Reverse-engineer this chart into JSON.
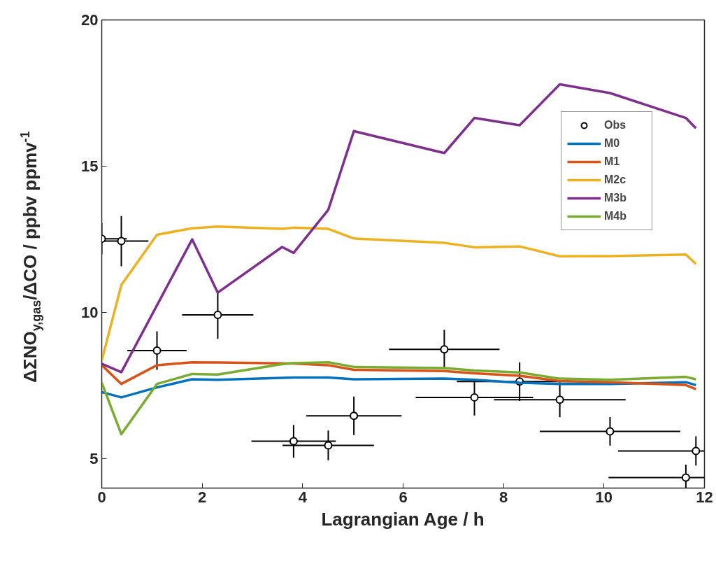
{
  "chart_data": {
    "type": "line",
    "xlabel": "Lagrangian Age / h",
    "ylabel": "ΔΣNO$_{y,gas}$/ΔCO / ppbv ppmv$^{-1}$",
    "xlim": [
      0,
      12
    ],
    "xticks": [
      0,
      2,
      4,
      6,
      8,
      10,
      12
    ],
    "ylim": [
      4,
      20
    ],
    "yticks": [
      5,
      10,
      15,
      20
    ],
    "grid": false,
    "legend": "top right",
    "line_style": "solid",
    "series": [
      {
        "name": "Obs",
        "type": "scatter",
        "marker": "circle",
        "color": "#000000",
        "x": [
          0,
          0.39,
          1.1,
          2.31,
          3.82,
          4.51,
          5.02,
          6.82,
          7.42,
          8.32,
          9.12,
          10.12,
          11.83,
          11.63
        ],
        "values": [
          12.52,
          12.44,
          8.7,
          9.92,
          5.6,
          5.46,
          6.47,
          8.74,
          7.1,
          7.64,
          7.02,
          5.94,
          5.27,
          4.36
        ],
        "errors": [
          0.53,
          0.86,
          0.66,
          0.82,
          0.56,
          0.51,
          0.66,
          0.67,
          0.62,
          0.66,
          0.6,
          0.49,
          0.5,
          [
            4,
            4.8
          ]
        ],
        "xerrors": [
          [
            0,
            0.5
          ],
          0.54,
          0.59,
          0.71,
          0.84,
          0.91,
          0.95,
          1.1,
          1.17,
          1.25,
          1.31,
          1.4,
          [
            10.28,
            12
          ],
          [
            10.09,
            12
          ]
        ]
      },
      {
        "name": "M0",
        "color": "#0072bd",
        "x": [
          0,
          0.39,
          1.1,
          1.8,
          2.31,
          3.82,
          4.51,
          5.02,
          6.82,
          7.42,
          8.32,
          9.12,
          10.12,
          11.63,
          11.83
        ],
        "values": [
          7.28,
          7.1,
          7.44,
          7.72,
          7.7,
          7.78,
          7.78,
          7.72,
          7.74,
          7.7,
          7.6,
          7.56,
          7.56,
          7.62,
          7.52
        ]
      },
      {
        "name": "M1",
        "color": "#d95319",
        "x": [
          0,
          0.39,
          1.1,
          1.8,
          2.31,
          3.82,
          4.51,
          5.02,
          6.82,
          7.42,
          8.32,
          9.12,
          10.12,
          11.63,
          11.83
        ],
        "values": [
          8.2,
          7.56,
          8.2,
          8.3,
          8.29,
          8.26,
          8.2,
          8.04,
          8.0,
          7.92,
          7.84,
          7.66,
          7.62,
          7.52,
          7.38
        ]
      },
      {
        "name": "M2c",
        "color": "#edb120",
        "x": [
          0,
          0.39,
          1.1,
          1.8,
          2.31,
          3.6,
          3.82,
          4.51,
          5.02,
          6.82,
          7.42,
          8.32,
          9.12,
          10.12,
          11.63,
          11.83
        ],
        "values": [
          8.36,
          10.94,
          12.66,
          12.88,
          12.94,
          12.86,
          12.9,
          12.86,
          12.53,
          12.38,
          12.23,
          12.26,
          11.92,
          11.93,
          11.98,
          11.66
        ]
      },
      {
        "name": "M3b",
        "color": "#7e2f8e",
        "x": [
          0,
          0.39,
          1.8,
          2.31,
          3.59,
          3.82,
          4.51,
          5.02,
          6.82,
          7.42,
          8.32,
          9.12,
          10.12,
          11.63,
          11.83
        ],
        "values": [
          8.25,
          7.96,
          12.5,
          10.68,
          12.24,
          12.04,
          13.51,
          16.2,
          15.45,
          16.65,
          16.4,
          17.8,
          17.5,
          16.65,
          16.3
        ]
      },
      {
        "name": "M4b",
        "color": "#77ac30",
        "x": [
          0,
          0.39,
          1.1,
          1.8,
          2.31,
          3.6,
          3.82,
          4.51,
          5.02,
          6.82,
          7.42,
          8.32,
          9.12,
          10.12,
          11.63,
          11.83
        ],
        "values": [
          7.6,
          5.84,
          7.56,
          7.9,
          7.88,
          8.24,
          8.27,
          8.3,
          8.14,
          8.1,
          8.02,
          7.95,
          7.74,
          7.7,
          7.8,
          7.72
        ]
      }
    ]
  }
}
